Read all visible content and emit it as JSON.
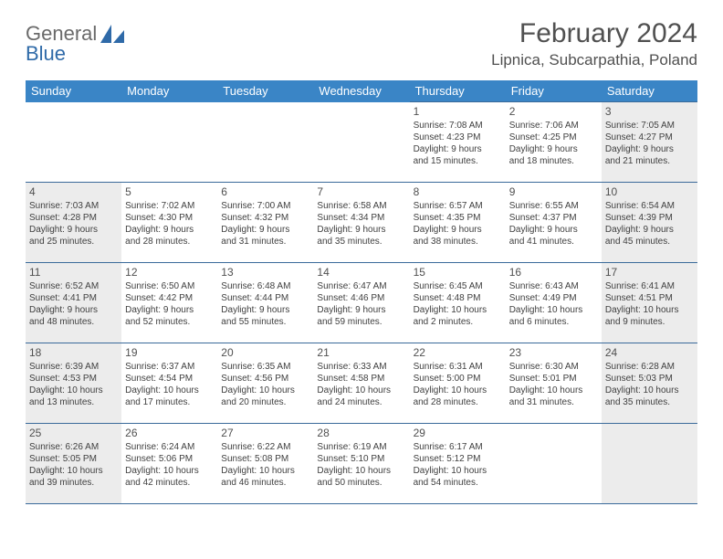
{
  "logo": {
    "text1": "General",
    "text2": "Blue"
  },
  "title": "February 2024",
  "location": "Lipnica, Subcarpathia, Poland",
  "colors": {
    "header_bg": "#3a85c6",
    "header_fg": "#ffffff",
    "border": "#3a6a9a",
    "weekend_bg": "#ececec",
    "text": "#505050"
  },
  "weekdays": [
    "Sunday",
    "Monday",
    "Tuesday",
    "Wednesday",
    "Thursday",
    "Friday",
    "Saturday"
  ],
  "weeks": [
    [
      null,
      null,
      null,
      null,
      {
        "n": "1",
        "sr": "7:08 AM",
        "ss": "4:23 PM",
        "d1": "9 hours",
        "d2": "and 15 minutes."
      },
      {
        "n": "2",
        "sr": "7:06 AM",
        "ss": "4:25 PM",
        "d1": "9 hours",
        "d2": "and 18 minutes."
      },
      {
        "n": "3",
        "sr": "7:05 AM",
        "ss": "4:27 PM",
        "d1": "9 hours",
        "d2": "and 21 minutes."
      }
    ],
    [
      {
        "n": "4",
        "sr": "7:03 AM",
        "ss": "4:28 PM",
        "d1": "9 hours",
        "d2": "and 25 minutes."
      },
      {
        "n": "5",
        "sr": "7:02 AM",
        "ss": "4:30 PM",
        "d1": "9 hours",
        "d2": "and 28 minutes."
      },
      {
        "n": "6",
        "sr": "7:00 AM",
        "ss": "4:32 PM",
        "d1": "9 hours",
        "d2": "and 31 minutes."
      },
      {
        "n": "7",
        "sr": "6:58 AM",
        "ss": "4:34 PM",
        "d1": "9 hours",
        "d2": "and 35 minutes."
      },
      {
        "n": "8",
        "sr": "6:57 AM",
        "ss": "4:35 PM",
        "d1": "9 hours",
        "d2": "and 38 minutes."
      },
      {
        "n": "9",
        "sr": "6:55 AM",
        "ss": "4:37 PM",
        "d1": "9 hours",
        "d2": "and 41 minutes."
      },
      {
        "n": "10",
        "sr": "6:54 AM",
        "ss": "4:39 PM",
        "d1": "9 hours",
        "d2": "and 45 minutes."
      }
    ],
    [
      {
        "n": "11",
        "sr": "6:52 AM",
        "ss": "4:41 PM",
        "d1": "9 hours",
        "d2": "and 48 minutes."
      },
      {
        "n": "12",
        "sr": "6:50 AM",
        "ss": "4:42 PM",
        "d1": "9 hours",
        "d2": "and 52 minutes."
      },
      {
        "n": "13",
        "sr": "6:48 AM",
        "ss": "4:44 PM",
        "d1": "9 hours",
        "d2": "and 55 minutes."
      },
      {
        "n": "14",
        "sr": "6:47 AM",
        "ss": "4:46 PM",
        "d1": "9 hours",
        "d2": "and 59 minutes."
      },
      {
        "n": "15",
        "sr": "6:45 AM",
        "ss": "4:48 PM",
        "d1": "10 hours",
        "d2": "and 2 minutes."
      },
      {
        "n": "16",
        "sr": "6:43 AM",
        "ss": "4:49 PM",
        "d1": "10 hours",
        "d2": "and 6 minutes."
      },
      {
        "n": "17",
        "sr": "6:41 AM",
        "ss": "4:51 PM",
        "d1": "10 hours",
        "d2": "and 9 minutes."
      }
    ],
    [
      {
        "n": "18",
        "sr": "6:39 AM",
        "ss": "4:53 PM",
        "d1": "10 hours",
        "d2": "and 13 minutes."
      },
      {
        "n": "19",
        "sr": "6:37 AM",
        "ss": "4:54 PM",
        "d1": "10 hours",
        "d2": "and 17 minutes."
      },
      {
        "n": "20",
        "sr": "6:35 AM",
        "ss": "4:56 PM",
        "d1": "10 hours",
        "d2": "and 20 minutes."
      },
      {
        "n": "21",
        "sr": "6:33 AM",
        "ss": "4:58 PM",
        "d1": "10 hours",
        "d2": "and 24 minutes."
      },
      {
        "n": "22",
        "sr": "6:31 AM",
        "ss": "5:00 PM",
        "d1": "10 hours",
        "d2": "and 28 minutes."
      },
      {
        "n": "23",
        "sr": "6:30 AM",
        "ss": "5:01 PM",
        "d1": "10 hours",
        "d2": "and 31 minutes."
      },
      {
        "n": "24",
        "sr": "6:28 AM",
        "ss": "5:03 PM",
        "d1": "10 hours",
        "d2": "and 35 minutes."
      }
    ],
    [
      {
        "n": "25",
        "sr": "6:26 AM",
        "ss": "5:05 PM",
        "d1": "10 hours",
        "d2": "and 39 minutes."
      },
      {
        "n": "26",
        "sr": "6:24 AM",
        "ss": "5:06 PM",
        "d1": "10 hours",
        "d2": "and 42 minutes."
      },
      {
        "n": "27",
        "sr": "6:22 AM",
        "ss": "5:08 PM",
        "d1": "10 hours",
        "d2": "and 46 minutes."
      },
      {
        "n": "28",
        "sr": "6:19 AM",
        "ss": "5:10 PM",
        "d1": "10 hours",
        "d2": "and 50 minutes."
      },
      {
        "n": "29",
        "sr": "6:17 AM",
        "ss": "5:12 PM",
        "d1": "10 hours",
        "d2": "and 54 minutes."
      },
      null,
      null
    ]
  ]
}
